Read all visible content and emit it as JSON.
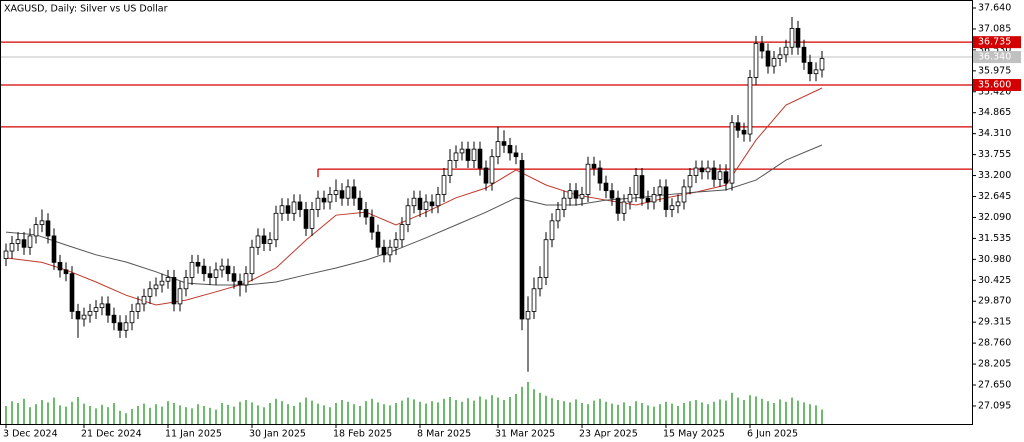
{
  "chart_data": {
    "type": "candlestick",
    "title": "XAGUSD, Daily:  Silver vs US Dollar",
    "open": [
      31.0,
      31.2,
      31.4,
      31.5,
      31.3,
      31.6,
      31.9,
      32.0,
      31.6,
      30.9,
      30.7,
      30.6,
      29.6,
      29.4,
      29.5,
      29.6,
      29.7,
      29.8,
      29.5,
      29.3,
      29.1,
      29.3,
      29.6,
      29.8,
      30.0,
      30.2,
      30.3,
      30.4,
      30.5,
      29.8,
      30.2,
      30.5,
      30.9,
      30.8,
      30.6,
      30.5,
      30.7,
      30.8,
      30.6,
      30.4,
      30.3,
      30.6,
      31.3,
      31.6,
      31.4,
      31.5,
      32.2,
      32.4,
      32.2,
      32.5,
      32.3,
      31.8,
      32.3,
      32.6,
      32.5,
      32.7,
      32.8,
      32.6,
      32.9,
      32.6,
      32.3,
      32.1,
      31.7,
      31.3,
      31.1,
      31.3,
      31.5,
      31.9,
      32.4,
      32.6,
      32.3,
      32.5,
      32.4,
      32.7,
      33.2,
      33.6,
      33.8,
      33.9,
      33.6,
      33.9,
      33.4,
      33.0,
      33.7,
      34.1,
      34.0,
      33.8,
      33.6,
      29.4,
      29.6,
      30.2,
      30.5,
      31.5,
      32.0,
      32.3,
      32.6,
      32.8,
      32.6,
      32.7,
      33.5,
      33.4,
      33.0,
      32.8,
      32.6,
      32.2,
      32.5,
      32.7,
      33.2,
      32.6,
      32.5,
      32.7,
      32.9,
      32.3,
      32.4,
      32.5,
      32.9,
      33.2,
      33.4,
      33.3,
      33.4,
      33.1,
      33.3,
      33.0,
      34.6,
      34.4,
      34.3,
      35.8,
      36.7,
      36.5,
      36.1,
      36.3,
      36.4,
      36.6,
      37.1,
      36.6,
      36.2,
      35.9,
      36.0
    ],
    "high": [
      31.4,
      31.6,
      31.7,
      31.7,
      31.8,
      32.1,
      32.3,
      32.2,
      31.8,
      31.1,
      30.9,
      30.8,
      29.8,
      29.7,
      29.8,
      29.9,
      30.0,
      30.0,
      29.7,
      29.5,
      29.5,
      29.8,
      30.0,
      30.2,
      30.4,
      30.5,
      30.6,
      30.7,
      30.7,
      30.4,
      30.7,
      31.1,
      31.1,
      31.0,
      30.8,
      30.9,
      31.0,
      31.0,
      30.8,
      30.6,
      30.8,
      31.5,
      31.8,
      31.8,
      31.7,
      32.4,
      32.6,
      32.6,
      32.7,
      32.7,
      32.5,
      32.5,
      32.8,
      32.8,
      32.9,
      33.1,
      33.0,
      33.1,
      33.1,
      32.8,
      32.5,
      32.3,
      31.9,
      31.5,
      31.5,
      31.7,
      32.1,
      32.6,
      32.8,
      32.8,
      32.7,
      32.7,
      32.9,
      33.4,
      33.9,
      34.0,
      34.1,
      34.1,
      34.1,
      34.1,
      33.6,
      33.9,
      34.5,
      34.4,
      34.2,
      34.0,
      33.8,
      30.0,
      30.5,
      30.8,
      31.7,
      32.2,
      32.5,
      32.8,
      33.0,
      33.0,
      32.9,
      33.7,
      33.7,
      33.6,
      33.2,
      33.0,
      32.8,
      32.7,
      32.9,
      33.4,
      33.4,
      32.8,
      32.9,
      33.1,
      33.1,
      32.6,
      32.7,
      33.1,
      33.4,
      33.6,
      33.6,
      33.6,
      33.6,
      33.5,
      33.5,
      34.8,
      34.8,
      34.6,
      36.0,
      36.9,
      36.9,
      36.7,
      36.5,
      36.6,
      36.8,
      37.4,
      37.3,
      36.8,
      36.4,
      36.2,
      36.5
    ],
    "low": [
      30.8,
      31.0,
      31.2,
      31.1,
      31.1,
      31.4,
      31.7,
      31.4,
      30.7,
      30.5,
      30.4,
      29.4,
      28.9,
      29.2,
      29.3,
      29.4,
      29.5,
      29.3,
      29.1,
      28.9,
      28.9,
      29.1,
      29.4,
      29.6,
      29.8,
      30.0,
      30.1,
      30.2,
      29.6,
      29.6,
      30.0,
      30.3,
      30.6,
      30.4,
      30.3,
      30.3,
      30.5,
      30.4,
      30.2,
      30.0,
      30.1,
      30.4,
      31.1,
      31.2,
      31.2,
      31.3,
      32.0,
      32.0,
      32.0,
      32.1,
      31.6,
      31.6,
      32.1,
      32.3,
      32.3,
      32.5,
      32.4,
      32.4,
      32.4,
      32.1,
      31.9,
      31.5,
      31.1,
      30.9,
      30.9,
      31.1,
      31.3,
      31.7,
      32.2,
      32.1,
      32.1,
      32.2,
      32.2,
      32.5,
      33.0,
      33.4,
      33.6,
      33.4,
      33.4,
      33.2,
      32.8,
      32.8,
      33.5,
      33.8,
      33.6,
      33.5,
      29.1,
      28.0,
      29.4,
      30.0,
      30.3,
      31.3,
      31.8,
      32.1,
      32.4,
      32.4,
      32.4,
      32.5,
      33.2,
      32.8,
      32.6,
      32.4,
      32.0,
      32.0,
      32.3,
      32.5,
      32.4,
      32.3,
      32.3,
      32.5,
      32.1,
      32.1,
      32.2,
      32.3,
      32.7,
      33.0,
      33.1,
      33.1,
      32.9,
      32.9,
      32.8,
      32.8,
      34.2,
      34.1,
      34.1,
      35.6,
      36.3,
      35.9,
      35.9,
      36.1,
      36.2,
      36.4,
      36.4,
      36.0,
      35.7,
      35.7,
      35.8
    ],
    "close": [
      31.2,
      31.4,
      31.5,
      31.3,
      31.6,
      31.9,
      32.0,
      31.6,
      30.9,
      30.7,
      30.6,
      29.6,
      29.4,
      29.5,
      29.6,
      29.7,
      29.8,
      29.5,
      29.3,
      29.1,
      29.3,
      29.6,
      29.8,
      30.0,
      30.2,
      30.3,
      30.4,
      30.5,
      29.8,
      30.2,
      30.5,
      30.9,
      30.8,
      30.6,
      30.5,
      30.7,
      30.8,
      30.6,
      30.4,
      30.3,
      30.6,
      31.3,
      31.6,
      31.4,
      31.5,
      32.2,
      32.4,
      32.2,
      32.5,
      32.3,
      31.8,
      32.3,
      32.6,
      32.5,
      32.7,
      32.8,
      32.6,
      32.9,
      32.6,
      32.3,
      32.1,
      31.7,
      31.3,
      31.1,
      31.3,
      31.5,
      31.9,
      32.4,
      32.6,
      32.3,
      32.5,
      32.4,
      32.7,
      33.2,
      33.6,
      33.8,
      33.9,
      33.6,
      33.9,
      33.4,
      33.0,
      33.7,
      34.1,
      34.0,
      33.8,
      33.7,
      29.4,
      29.6,
      30.2,
      30.5,
      31.5,
      32.0,
      32.3,
      32.6,
      32.8,
      32.6,
      32.7,
      33.5,
      33.4,
      33.0,
      32.8,
      32.6,
      32.2,
      32.5,
      32.7,
      33.2,
      32.6,
      32.5,
      32.7,
      32.9,
      32.3,
      32.4,
      32.5,
      32.9,
      33.2,
      33.4,
      33.3,
      33.4,
      33.1,
      33.3,
      33.0,
      34.6,
      34.4,
      34.3,
      35.8,
      36.7,
      36.5,
      36.1,
      36.3,
      36.4,
      36.6,
      37.1,
      36.6,
      36.2,
      35.9,
      36.0,
      36.3
    ],
    "volume": [
      30,
      38,
      35,
      42,
      28,
      33,
      40,
      36,
      44,
      31,
      29,
      37,
      45,
      34,
      30,
      26,
      32,
      28,
      35,
      22,
      18,
      25,
      30,
      34,
      27,
      33,
      29,
      38,
      35,
      31,
      28,
      26,
      33,
      30,
      27,
      24,
      35,
      32,
      29,
      37,
      40,
      36,
      31,
      28,
      35,
      42,
      38,
      33,
      30,
      36,
      44,
      39,
      34,
      31,
      28,
      35,
      40,
      37,
      33,
      30,
      38,
      42,
      36,
      33,
      31,
      35,
      39,
      44,
      41,
      37,
      34,
      38,
      36,
      42,
      45,
      40,
      37,
      43,
      39,
      46,
      41,
      48,
      44,
      40,
      45,
      50,
      62,
      70,
      58,
      52,
      47,
      43,
      40,
      38,
      36,
      41,
      35,
      33,
      39,
      42,
      37,
      34,
      32,
      36,
      30,
      38,
      35,
      31,
      29,
      33,
      37,
      34,
      30,
      35,
      38,
      40,
      36,
      33,
      37,
      41,
      39,
      52,
      44,
      40,
      48,
      46,
      42,
      38,
      35,
      41,
      37,
      44,
      39,
      36,
      33,
      31,
      24
    ],
    "volume_lim": [
      0,
      100
    ],
    "volume_color": "#2e9e2e",
    "bull_color": "#ffffff",
    "bear_color": "#000000",
    "lines": [
      {
        "color": "#c0392b",
        "x": [
          0,
          6,
          10,
          15,
          20,
          25,
          30,
          35,
          40,
          45,
          50,
          55,
          60,
          65,
          70,
          75,
          80,
          85,
          90,
          95,
          100,
          105,
          110,
          115,
          120,
          125,
          130,
          136
        ],
        "values": [
          31.02,
          30.9,
          30.7,
          30.38,
          30.03,
          29.77,
          29.9,
          30.12,
          30.35,
          30.75,
          31.49,
          32.15,
          32.23,
          31.89,
          32.23,
          32.61,
          32.87,
          33.35,
          32.95,
          32.69,
          32.55,
          32.42,
          32.61,
          32.76,
          32.95,
          34.14,
          35.07,
          35.52
        ]
      },
      {
        "color": "#555555",
        "x": [
          0,
          5,
          10,
          15,
          20,
          25,
          30,
          35,
          40,
          45,
          50,
          55,
          60,
          65,
          70,
          75,
          80,
          85,
          90,
          95,
          100,
          105,
          110,
          115,
          120,
          125,
          130,
          136
        ],
        "values": [
          31.7,
          31.63,
          31.36,
          31.1,
          30.91,
          30.65,
          30.35,
          30.3,
          30.3,
          30.38,
          30.57,
          30.75,
          30.96,
          31.23,
          31.55,
          31.89,
          32.23,
          32.61,
          32.42,
          32.42,
          32.55,
          32.61,
          32.69,
          32.76,
          32.82,
          33.08,
          33.61,
          34.01
        ]
      }
    ],
    "levels": [
      {
        "value": 36.735,
        "label": "36.735",
        "color": "#d40000"
      },
      {
        "value": 35.6,
        "label": "35.600",
        "color": "#d40000"
      },
      {
        "value": 34.49,
        "color": "#d40000"
      },
      {
        "value": 33.37,
        "color": "#d40000",
        "start": 52
      }
    ],
    "last_price": {
      "value": 36.34,
      "label": "36.340",
      "color": "#c0c0c0"
    },
    "xlim": [
      -1,
      161
    ],
    "ylim": [
      26.617,
      37.852
    ],
    "xticks": [
      {
        "value": 0,
        "label": "3 Dec 2024"
      },
      {
        "value": 13,
        "label": "21 Dec 2024"
      },
      {
        "value": 27,
        "label": "11 Jan 2025"
      },
      {
        "value": 41,
        "label": "30 Jan 2025"
      },
      {
        "value": 55,
        "label": "18 Feb 2025"
      },
      {
        "value": 69,
        "label": "8 Mar 2025"
      },
      {
        "value": 82,
        "label": "31 Mar 2025"
      },
      {
        "value": 96,
        "label": "23 Apr 2025"
      },
      {
        "value": 110,
        "label": "15 May 2025"
      },
      {
        "value": 124,
        "label": "6 Jun 2025"
      }
    ],
    "yticks": [
      {
        "value": 37.64,
        "label": "37.640"
      },
      37.085,
      {
        "value": 36.53,
        "label": "36.530"
      },
      35.975,
      {
        "value": 35.42,
        "label": "35.420"
      },
      34.865,
      {
        "value": 34.31,
        "label": "34.310"
      },
      33.755,
      {
        "value": 33.2,
        "label": "33.200"
      },
      32.645,
      {
        "value": 32.09,
        "label": "32.090"
      },
      31.535,
      {
        "value": 30.98,
        "label": "30.980"
      },
      30.425,
      {
        "value": 29.87,
        "label": "29.870"
      },
      29.315,
      {
        "value": 28.76,
        "label": "28.760"
      },
      28.205,
      {
        "value": 27.65,
        "label": "27.650"
      },
      27.095
    ]
  }
}
